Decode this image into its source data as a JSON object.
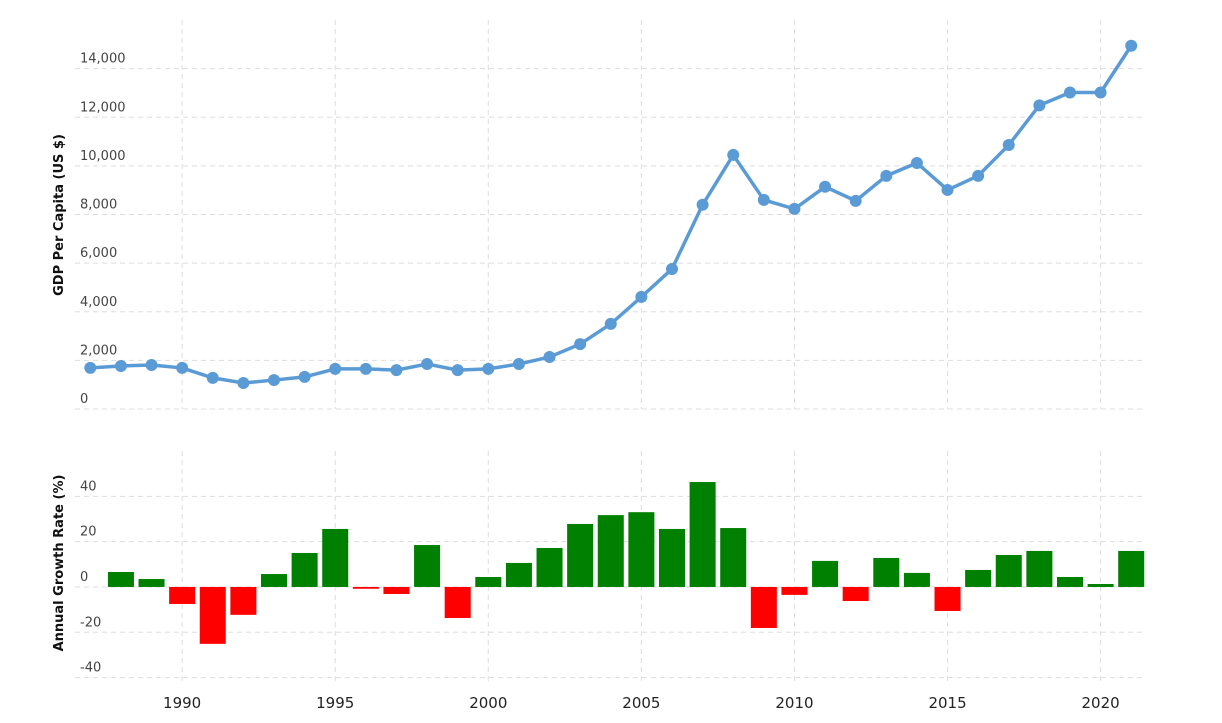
{
  "chart_data": [
    {
      "type": "line",
      "y_label": "GDP Per Capita (US $)",
      "x": [
        1987,
        1988,
        1989,
        1990,
        1991,
        1992,
        1993,
        1994,
        1995,
        1996,
        1997,
        1998,
        1999,
        2000,
        2001,
        2002,
        2003,
        2004,
        2005,
        2006,
        2007,
        2008,
        2009,
        2010,
        2011,
        2012,
        2013,
        2014,
        2015,
        2016,
        2017,
        2018,
        2019,
        2020,
        2021
      ],
      "series": [
        {
          "name": "GDP Per Capita",
          "color": "#5b9bd5",
          "values": [
            1690,
            1770,
            1810,
            1690,
            1280,
            1070,
            1190,
            1320,
            1650,
            1650,
            1600,
            1850,
            1600,
            1650,
            1850,
            2140,
            2670,
            3500,
            4610,
            5760,
            8400,
            10450,
            8600,
            8230,
            9140,
            8560,
            9590,
            10120,
            9010,
            9590,
            10860,
            12490,
            13020,
            13020,
            14940
          ]
        }
      ],
      "xlim": [
        1986.5,
        2021.45
      ],
      "xticks": [
        1990,
        1995,
        2000,
        2005,
        2010,
        2015,
        2020
      ],
      "ylim": [
        0,
        16000
      ],
      "yticks": [
        0,
        {
          "value": 2000,
          "label": "2,000"
        },
        {
          "value": 4000,
          "label": "4,000"
        },
        {
          "value": 6000,
          "label": "6,000"
        },
        {
          "value": 8000,
          "label": "8,000"
        },
        {
          "value": 10000,
          "label": "10,000"
        },
        {
          "value": 12000,
          "label": "12,000"
        },
        {
          "value": 14000,
          "label": "14,000"
        }
      ],
      "grid": true
    },
    {
      "type": "bar",
      "y_label": "Annual Growth Rate (%)",
      "x": [
        1988,
        1989,
        1990,
        1991,
        1992,
        1993,
        1994,
        1995,
        1996,
        1997,
        1998,
        1999,
        2000,
        2001,
        2002,
        2003,
        2004,
        2005,
        2006,
        2007,
        2008,
        2009,
        2010,
        2011,
        2012,
        2013,
        2014,
        2015,
        2016,
        2017,
        2018,
        2019,
        2020,
        2021
      ],
      "values": [
        6.6,
        3.5,
        -7.5,
        -25.1,
        -12.3,
        5.7,
        15.0,
        25.6,
        -0.8,
        -3.1,
        18.5,
        -13.7,
        4.4,
        10.6,
        17.2,
        27.8,
        31.7,
        33.0,
        25.6,
        46.3,
        26.0,
        -18.1,
        -3.5,
        11.5,
        -6.2,
        12.8,
        6.2,
        -10.6,
        7.5,
        14.1,
        15.9,
        4.4,
        1.3,
        15.9
      ],
      "positive_color": "#008000",
      "negative_color": "#ff0000",
      "xlim": [
        1986.5,
        2021.45
      ],
      "xticks": [
        1990,
        1995,
        2000,
        2005,
        2010,
        2015,
        2020
      ],
      "ylim": [
        -41.5,
        60
      ],
      "yticks": [
        -40,
        -20,
        0,
        20,
        40
      ],
      "grid": true
    }
  ]
}
